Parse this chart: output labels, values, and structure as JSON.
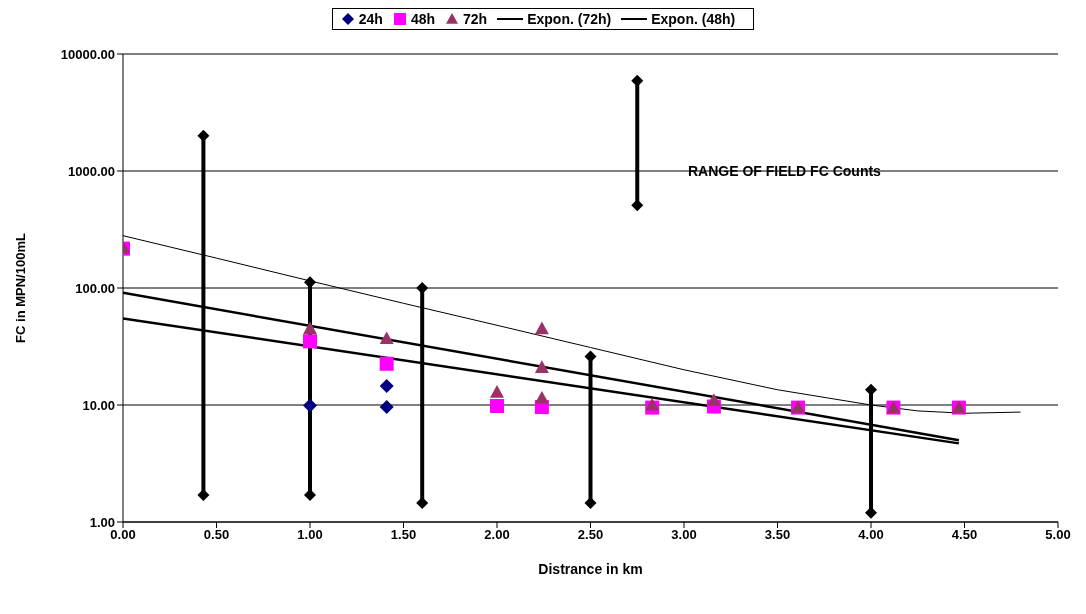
{
  "chart_data": {
    "type": "scatter",
    "xlabel": "Distrance in km",
    "ylabel": "FC in MPN/100mL",
    "log": "y",
    "grid": "y",
    "legend": "top",
    "xlim": [
      0,
      5
    ],
    "xticks": [
      {
        "value": 0,
        "label": "0.00"
      },
      {
        "value": 0.5,
        "label": "0.50"
      },
      {
        "value": 1,
        "label": "1.00"
      },
      {
        "value": 1.5,
        "label": "1.50"
      },
      {
        "value": 2,
        "label": "2.00"
      },
      {
        "value": 2.5,
        "label": "2.50"
      },
      {
        "value": 3,
        "label": "3.00"
      },
      {
        "value": 3.5,
        "label": "3.50"
      },
      {
        "value": 4,
        "label": "4.00"
      },
      {
        "value": 4.5,
        "label": "4.50"
      },
      {
        "value": 5,
        "label": "5.00"
      }
    ],
    "ylim": [
      1,
      10000
    ],
    "yticks": [
      {
        "value": 1,
        "label": "1.00"
      },
      {
        "value": 10,
        "label": "10.00"
      },
      {
        "value": 100,
        "label": "100.00"
      },
      {
        "value": 1000,
        "label": "1000.00"
      },
      {
        "value": 10000,
        "label": "10000.00"
      }
    ],
    "annotations": [
      "RANGE OF FIELD FC Counts"
    ],
    "series": [
      {
        "name": "24h",
        "marker": "diamond",
        "color": "#000080",
        "x": [
          1.0,
          1.41,
          1.41
        ],
        "values": [
          9.9,
          14.5,
          9.6
        ]
      },
      {
        "name": "48h",
        "marker": "square",
        "color": "#ff00ff",
        "x": [
          0,
          1.0,
          1.41,
          2.0,
          2.24,
          2.83,
          3.16,
          3.61,
          4.12,
          4.47
        ],
        "values": [
          217,
          35,
          22.5,
          9.8,
          9.6,
          9.5,
          9.7,
          9.5,
          9.5,
          9.5
        ]
      },
      {
        "name": "72h",
        "marker": "triangle",
        "color": "#993366",
        "x": [
          0,
          1.0,
          1.41,
          2.0,
          2.24,
          2.24,
          2.24,
          2.83,
          3.16,
          3.61,
          4.12,
          4.47
        ],
        "values": [
          220,
          45,
          37,
          12.9,
          45,
          21,
          11.5,
          10,
          11,
          9.5,
          9.5,
          9.5
        ]
      },
      {
        "name": "Expon. (72h)",
        "type": "line",
        "marker": "none",
        "color": "#000000",
        "x": [
          0,
          4.47
        ],
        "values": [
          91,
          5.0
        ]
      },
      {
        "name": "Expon. (48h)",
        "type": "line",
        "marker": "none",
        "color": "#000000",
        "x": [
          0,
          4.47
        ],
        "values": [
          55,
          4.7
        ]
      },
      {
        "type": "line",
        "marker": "none",
        "color": "#000000",
        "x": [
          0,
          0.5,
          1,
          1.5,
          2,
          2.5,
          3,
          3.5,
          4,
          4.25,
          4.5,
          4.8
        ],
        "values": [
          280,
          180,
          115,
          74,
          48,
          31,
          20,
          13.5,
          10,
          8.9,
          8.5,
          8.7
        ]
      },
      {
        "type": "line",
        "marker": "diamond",
        "color": "#000000",
        "x": [
          0.43,
          0.43
        ],
        "values": [
          1.7,
          2000
        ]
      },
      {
        "type": "line",
        "marker": "diamond",
        "color": "#000000",
        "x": [
          1.0,
          1.0
        ],
        "values": [
          1.7,
          112
        ]
      },
      {
        "type": "line",
        "marker": "diamond",
        "color": "#000000",
        "x": [
          1.6,
          1.6
        ],
        "values": [
          1.45,
          100
        ]
      },
      {
        "type": "line",
        "marker": "diamond",
        "color": "#000000",
        "x": [
          2.5,
          2.5
        ],
        "values": [
          1.45,
          26
        ]
      },
      {
        "type": "line",
        "marker": "diamond",
        "color": "#000000",
        "x": [
          2.75,
          2.75
        ],
        "values": [
          510,
          5900
        ]
      },
      {
        "type": "line",
        "marker": "diamond",
        "color": "#000000",
        "x": [
          4.0,
          4.0
        ],
        "values": [
          1.2,
          13.5
        ]
      }
    ]
  }
}
